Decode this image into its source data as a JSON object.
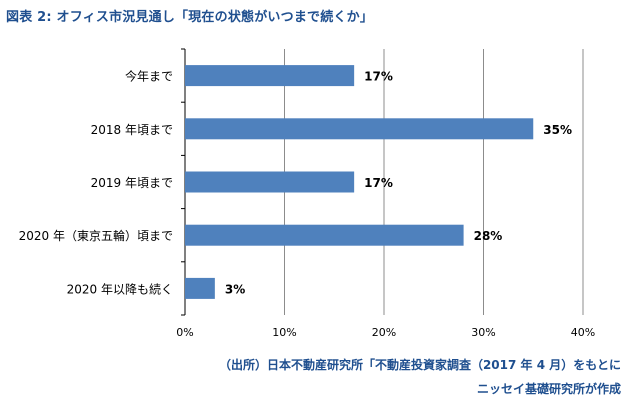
{
  "title": "図表 2: オフィス市況見通し「現在の状態がいつまで続くか」",
  "source_line1": "（出所）日本不動産研究所「不動産投資家調査（2017 年 4 月）をもとに",
  "source_line2": "ニッセイ基礎研究所が作成",
  "chart_data": {
    "type": "bar",
    "orientation": "horizontal",
    "categories": [
      "今年まで",
      "2018 年頃まで",
      "2019 年頃まで",
      "2020 年（東京五輪）頃まで",
      "2020 年以降も続く"
    ],
    "values": [
      17,
      35,
      17,
      28,
      3
    ],
    "value_labels": [
      "17%",
      "35%",
      "17%",
      "28%",
      "3%"
    ],
    "xlim": [
      0,
      40
    ],
    "xticks": [
      0,
      10,
      20,
      30,
      40
    ],
    "xtick_labels": [
      "0%",
      "10%",
      "20%",
      "30%",
      "40%"
    ],
    "grid": true,
    "bar_color": "#4f81bd",
    "grid_color": "#8c8c8c"
  }
}
